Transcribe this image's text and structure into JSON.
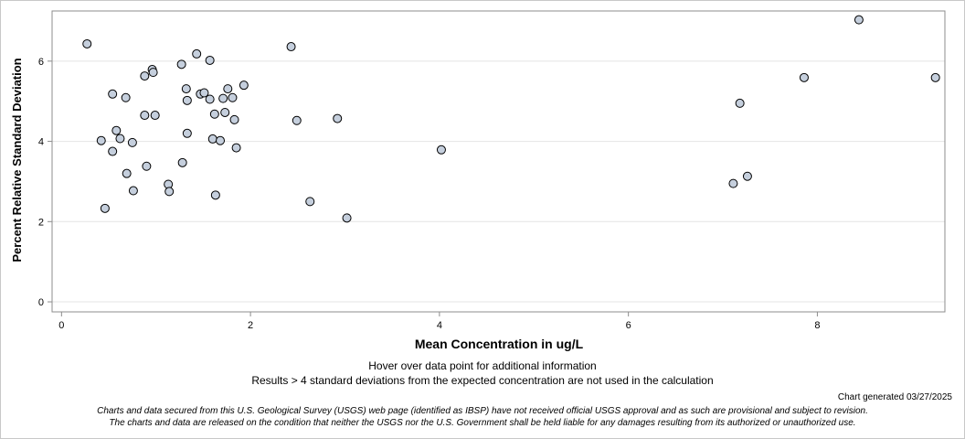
{
  "chart_data": {
    "type": "scatter",
    "title": "",
    "xlabel": "Mean Concentration in ug/L",
    "ylabel": "Percent Relative Standard Deviation",
    "xlim": [
      -0.1,
      9.35
    ],
    "ylim": [
      -0.25,
      7.25
    ],
    "xticks": [
      0,
      2,
      4,
      6,
      8
    ],
    "yticks": [
      0,
      2,
      4,
      6
    ],
    "grid": "horizontal",
    "marker_fill": "#c5cfdd",
    "marker_stroke": "#000000",
    "points": [
      [
        0.27,
        6.43
      ],
      [
        0.42,
        4.02
      ],
      [
        0.46,
        2.33
      ],
      [
        0.54,
        5.18
      ],
      [
        0.54,
        3.75
      ],
      [
        0.58,
        4.27
      ],
      [
        0.62,
        4.07
      ],
      [
        0.68,
        5.09
      ],
      [
        0.69,
        3.2
      ],
      [
        0.75,
        3.97
      ],
      [
        0.76,
        2.77
      ],
      [
        0.88,
        5.63
      ],
      [
        0.88,
        4.65
      ],
      [
        0.9,
        3.38
      ],
      [
        0.96,
        5.79
      ],
      [
        0.97,
        5.72
      ],
      [
        0.99,
        4.65
      ],
      [
        1.13,
        2.93
      ],
      [
        1.14,
        2.75
      ],
      [
        1.27,
        5.92
      ],
      [
        1.28,
        3.47
      ],
      [
        1.32,
        5.31
      ],
      [
        1.33,
        5.02
      ],
      [
        1.33,
        4.2
      ],
      [
        1.43,
        6.18
      ],
      [
        1.47,
        5.18
      ],
      [
        1.51,
        5.21
      ],
      [
        1.57,
        6.02
      ],
      [
        1.57,
        5.05
      ],
      [
        1.6,
        4.06
      ],
      [
        1.62,
        4.68
      ],
      [
        1.63,
        2.66
      ],
      [
        1.68,
        4.02
      ],
      [
        1.71,
        5.07
      ],
      [
        1.73,
        4.72
      ],
      [
        1.76,
        5.31
      ],
      [
        1.81,
        5.09
      ],
      [
        1.83,
        4.54
      ],
      [
        1.85,
        3.84
      ],
      [
        1.93,
        5.4
      ],
      [
        2.43,
        6.36
      ],
      [
        2.49,
        4.52
      ],
      [
        2.63,
        2.5
      ],
      [
        2.92,
        4.57
      ],
      [
        3.02,
        2.09
      ],
      [
        4.02,
        3.79
      ],
      [
        7.11,
        2.95
      ],
      [
        7.18,
        4.95
      ],
      [
        7.26,
        3.13
      ],
      [
        7.86,
        5.59
      ],
      [
        8.44,
        7.03
      ],
      [
        9.25,
        5.59
      ]
    ]
  },
  "notes": {
    "hover": "Hover over data point for additional information",
    "results": "Results > 4 standard deviations from the expected concentration are not used in the calculation",
    "generated": "Chart generated 03/27/2025",
    "disclaimer1": "Charts and data secured from this U.S. Geological Survey (USGS) web page (identified as IBSP) have not received official USGS approval and as such are provisional and subject to revision.",
    "disclaimer2": "The charts and data are released on the condition that neither the USGS nor the U.S. Government shall be held liable for any damages resulting from its authorized or unauthorized use."
  }
}
